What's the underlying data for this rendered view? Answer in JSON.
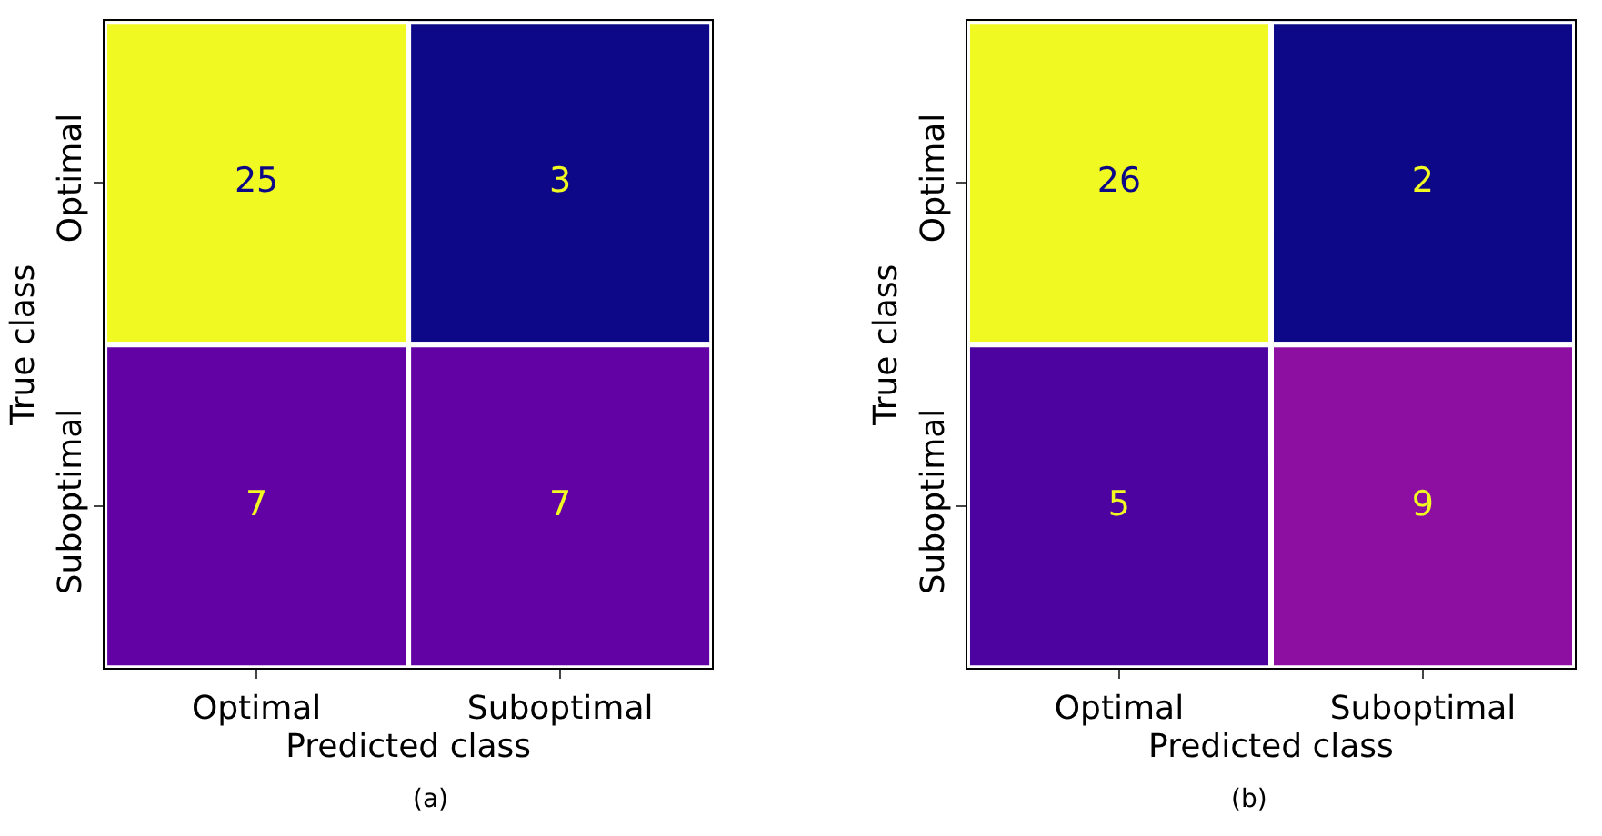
{
  "chart_data": [
    {
      "type": "heatmap",
      "title": "(a)",
      "xlabel": "Predicted class",
      "ylabel": "True class",
      "categories": [
        "Optimal",
        "Suboptimal"
      ],
      "y_categories": [
        "Optimal",
        "Suboptimal"
      ],
      "cells": [
        [
          25,
          3
        ],
        [
          7,
          7
        ]
      ],
      "data_labels": true
    },
    {
      "type": "heatmap",
      "title": "(b)",
      "xlabel": "Predicted class",
      "ylabel": "True class",
      "categories": [
        "Optimal",
        "Suboptimal"
      ],
      "y_categories": [
        "Optimal",
        "Suboptimal"
      ],
      "cells": [
        [
          26,
          2
        ],
        [
          5,
          9
        ]
      ],
      "data_labels": true
    }
  ]
}
